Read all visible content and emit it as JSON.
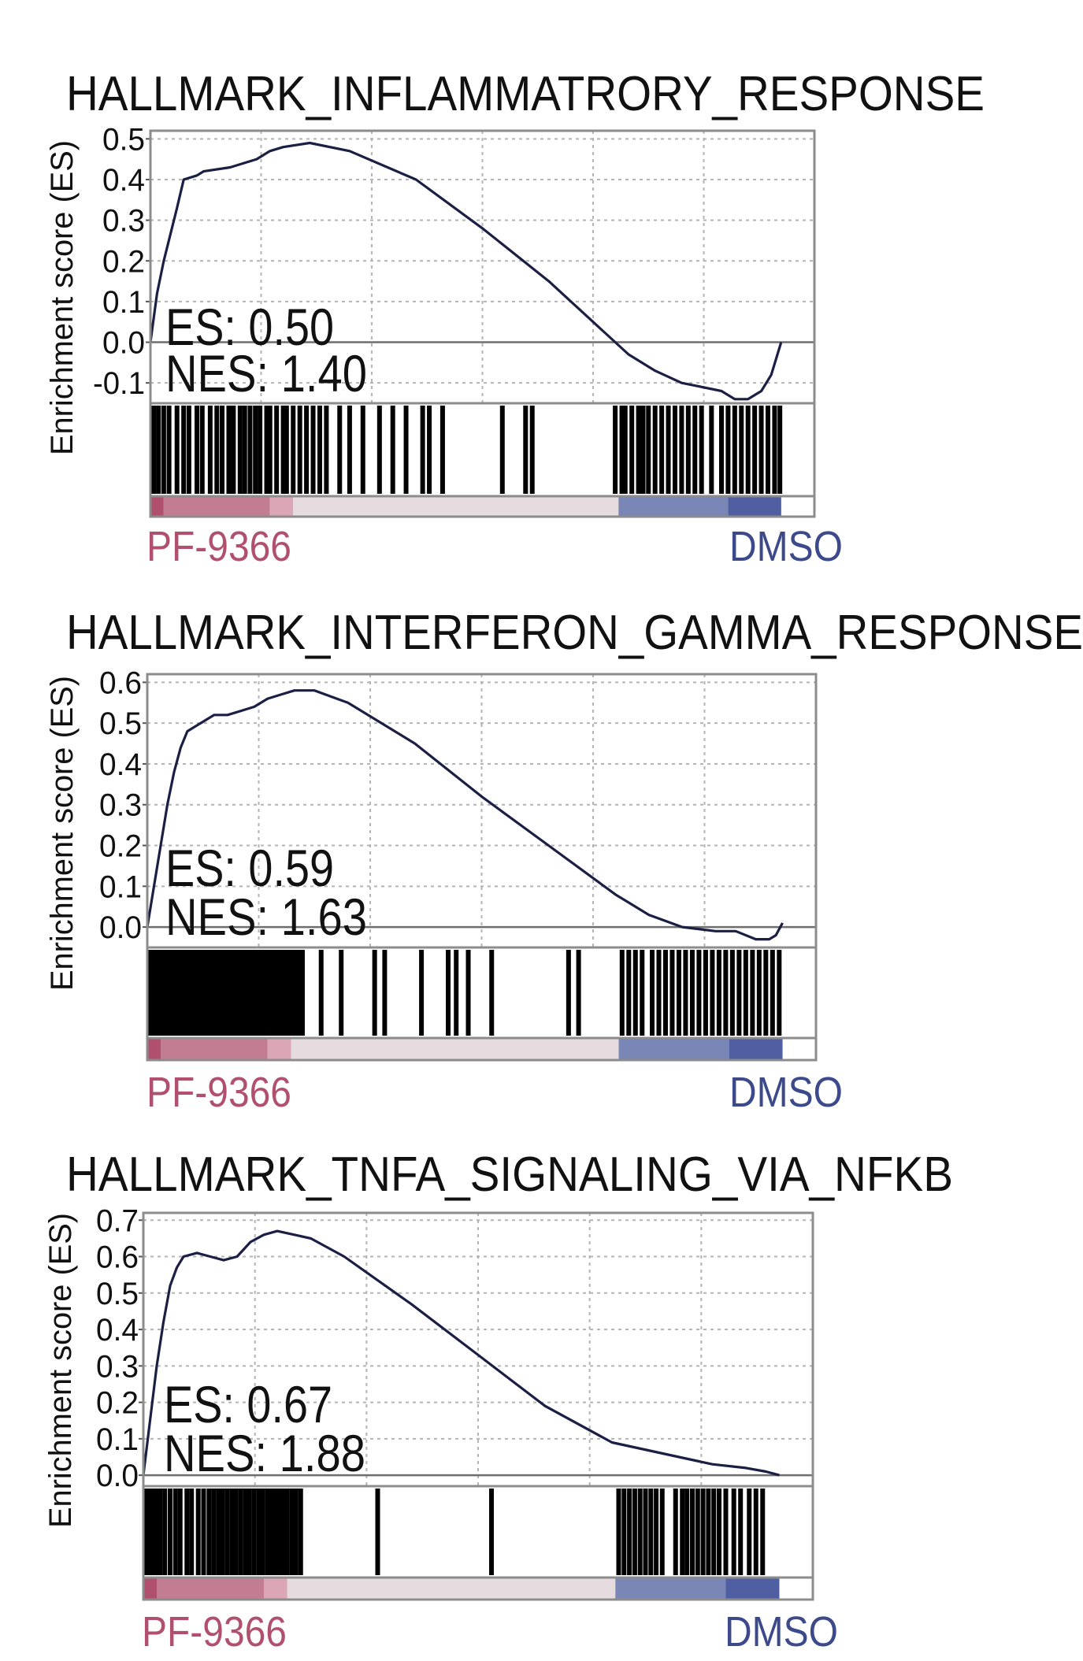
{
  "figure": {
    "y_axis_label": "Enrichment score (ES)",
    "colors": {
      "curve": "#1c1f44",
      "frame": "#8c8c8c",
      "grid": "#b4b4b4",
      "left_label": "#b0506e",
      "right_label": "#3c4a8c",
      "ramp": [
        "#b0506e",
        "#c27d92",
        "#dba6b6",
        "#e6dcdf",
        "#7a86b6",
        "#4f5fa2"
      ]
    }
  },
  "chart_data": [
    {
      "type": "line",
      "title": "HALLMARK_INFLAMMATRORY_RESPONSE",
      "ylabel": "Enrichment score (ES)",
      "ylim": [
        -0.15,
        0.52
      ],
      "yticks": [
        "0.5",
        "0.4",
        "0.3",
        "0.2",
        "0.1",
        "0.0",
        "-0.1"
      ],
      "ytick_values": [
        0.5,
        0.4,
        0.3,
        0.2,
        0.1,
        0.0,
        -0.1
      ],
      "x": [
        0,
        0.01,
        0.02,
        0.04,
        0.05,
        0.07,
        0.08,
        0.12,
        0.16,
        0.18,
        0.2,
        0.24,
        0.3,
        0.4,
        0.5,
        0.6,
        0.66,
        0.72,
        0.76,
        0.8,
        0.83,
        0.86,
        0.88,
        0.9,
        0.92,
        0.935,
        0.95
      ],
      "values": [
        0,
        0.12,
        0.2,
        0.33,
        0.4,
        0.41,
        0.42,
        0.43,
        0.45,
        0.47,
        0.48,
        0.49,
        0.47,
        0.4,
        0.28,
        0.15,
        0.06,
        -0.03,
        -0.07,
        -0.1,
        -0.11,
        -0.12,
        -0.14,
        -0.14,
        -0.12,
        -0.08,
        0.0
      ],
      "hits": [
        0.005,
        0.012,
        0.02,
        0.028,
        0.04,
        0.05,
        0.058,
        0.07,
        0.078,
        0.09,
        0.1,
        0.108,
        0.118,
        0.125,
        0.135,
        0.142,
        0.15,
        0.158,
        0.165,
        0.175,
        0.18,
        0.19,
        0.2,
        0.205,
        0.215,
        0.225,
        0.235,
        0.245,
        0.255,
        0.265,
        0.285,
        0.3,
        0.32,
        0.345,
        0.365,
        0.385,
        0.41,
        0.42,
        0.44,
        0.53,
        0.565,
        0.575,
        0.7,
        0.71,
        0.715,
        0.725,
        0.735,
        0.742,
        0.75,
        0.76,
        0.77,
        0.78,
        0.79,
        0.8,
        0.81,
        0.82,
        0.83,
        0.845,
        0.86,
        0.87,
        0.88,
        0.89,
        0.9,
        0.91,
        0.92,
        0.93,
        0.94,
        0.948
      ],
      "es_label": "ES: 0.50",
      "nes_label": "NES: 1.40",
      "left_group": "PF-9366",
      "right_group": "DMSO"
    },
    {
      "type": "line",
      "title": "HALLMARK_INTERFERON_GAMMA_RESPONSE",
      "ylabel": "Enrichment score (ES)",
      "ylim": [
        -0.05,
        0.62
      ],
      "yticks": [
        "0.6",
        "0.5",
        "0.4",
        "0.3",
        "0.2",
        "0.1",
        "0.0"
      ],
      "ytick_values": [
        0.6,
        0.5,
        0.4,
        0.3,
        0.2,
        0.1,
        0.0
      ],
      "x": [
        0,
        0.01,
        0.02,
        0.03,
        0.04,
        0.05,
        0.06,
        0.08,
        0.1,
        0.12,
        0.14,
        0.16,
        0.18,
        0.2,
        0.22,
        0.25,
        0.3,
        0.4,
        0.5,
        0.6,
        0.7,
        0.75,
        0.8,
        0.85,
        0.88,
        0.91,
        0.93,
        0.94,
        0.95
      ],
      "values": [
        0,
        0.1,
        0.2,
        0.3,
        0.38,
        0.44,
        0.48,
        0.5,
        0.52,
        0.52,
        0.53,
        0.54,
        0.56,
        0.57,
        0.58,
        0.58,
        0.55,
        0.45,
        0.32,
        0.2,
        0.08,
        0.03,
        0.0,
        -0.01,
        -0.01,
        -0.03,
        -0.03,
        -0.02,
        0.01
      ],
      "hits": [
        0.003,
        0.008,
        0.013,
        0.018,
        0.023,
        0.028,
        0.033,
        0.038,
        0.043,
        0.048,
        0.053,
        0.058,
        0.063,
        0.068,
        0.073,
        0.078,
        0.083,
        0.088,
        0.094,
        0.1,
        0.106,
        0.112,
        0.118,
        0.124,
        0.13,
        0.136,
        0.142,
        0.148,
        0.154,
        0.16,
        0.166,
        0.172,
        0.178,
        0.184,
        0.19,
        0.196,
        0.202,
        0.208,
        0.214,
        0.22,
        0.226,
        0.232,
        0.26,
        0.29,
        0.34,
        0.355,
        0.41,
        0.45,
        0.462,
        0.48,
        0.515,
        0.63,
        0.645,
        0.71,
        0.72,
        0.73,
        0.74,
        0.755,
        0.765,
        0.775,
        0.785,
        0.795,
        0.805,
        0.815,
        0.825,
        0.835,
        0.845,
        0.855,
        0.865,
        0.875,
        0.885,
        0.895,
        0.905,
        0.915,
        0.925,
        0.935,
        0.945
      ],
      "es_label": "ES: 0.59",
      "nes_label": "NES: 1.63",
      "left_group": "PF-9366",
      "right_group": "DMSO"
    },
    {
      "type": "line",
      "title": "HALLMARK_TNFA_SIGNALING_VIA_NFKB",
      "ylabel": "Enrichment score (ES)",
      "ylim": [
        -0.03,
        0.72
      ],
      "yticks": [
        "0.7",
        "0.6",
        "0.5",
        "0.4",
        "0.3",
        "0.2",
        "0.1",
        "0.0"
      ],
      "ytick_values": [
        0.7,
        0.6,
        0.5,
        0.4,
        0.3,
        0.2,
        0.1,
        0.0
      ],
      "x": [
        0,
        0.01,
        0.02,
        0.03,
        0.04,
        0.05,
        0.06,
        0.08,
        0.1,
        0.12,
        0.14,
        0.16,
        0.18,
        0.2,
        0.25,
        0.3,
        0.4,
        0.5,
        0.6,
        0.7,
        0.8,
        0.85,
        0.9,
        0.93,
        0.95
      ],
      "values": [
        0,
        0.15,
        0.3,
        0.42,
        0.52,
        0.57,
        0.6,
        0.61,
        0.6,
        0.59,
        0.6,
        0.64,
        0.66,
        0.67,
        0.65,
        0.6,
        0.47,
        0.33,
        0.19,
        0.09,
        0.05,
        0.03,
        0.02,
        0.01,
        0.0
      ],
      "hits": [
        0.005,
        0.01,
        0.015,
        0.02,
        0.025,
        0.032,
        0.04,
        0.048,
        0.055,
        0.065,
        0.072,
        0.082,
        0.09,
        0.098,
        0.105,
        0.112,
        0.118,
        0.125,
        0.132,
        0.138,
        0.145,
        0.152,
        0.158,
        0.165,
        0.172,
        0.178,
        0.185,
        0.19,
        0.197,
        0.203,
        0.21,
        0.215,
        0.222,
        0.228,
        0.235,
        0.35,
        0.52,
        0.71,
        0.718,
        0.726,
        0.734,
        0.742,
        0.75,
        0.758,
        0.766,
        0.775,
        0.795,
        0.805,
        0.812,
        0.82,
        0.828,
        0.836,
        0.844,
        0.852,
        0.86,
        0.87,
        0.882,
        0.892,
        0.905,
        0.915,
        0.925
      ],
      "es_label": "ES: 0.67",
      "nes_label": "NES: 1.88",
      "left_group": "PF-9366",
      "right_group": "DMSO"
    }
  ]
}
